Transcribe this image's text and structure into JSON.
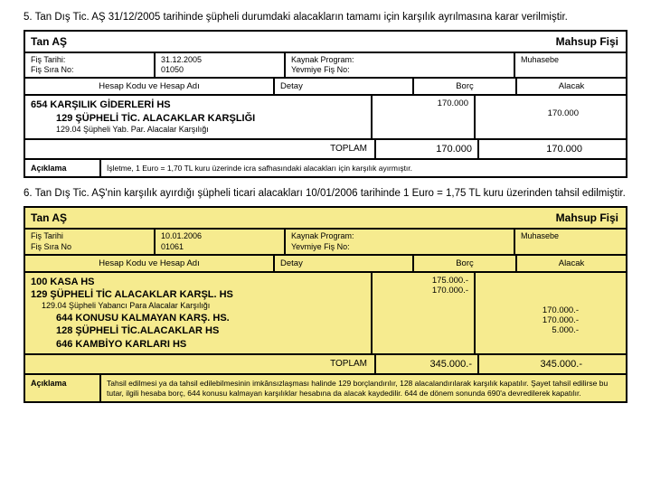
{
  "para5": "5. Tan Dış Tic. AŞ 31/12/2005 tarihinde şüpheli durumdaki alacakların tamamı için karşılık ayrılmasına karar verilmiştir.",
  "para6": "6. Tan Dış Tic. AŞ'nin karşılık ayırdığı şüpheli ticari alacakları 10/01/2006 tarihinde  1 Euro = 1,75  TL kuru üzerinden tahsil edilmiştir.",
  "labels": {
    "company": "Tan  AŞ",
    "vtitle": "Mahsup Fişi",
    "fisTarihi": "Fiş Tarihi:",
    "fisTarihiB": "Fiş Tarihi",
    "fisSira": "Fiş Sıra No:",
    "fisSiraB": "Fiş Sıra No",
    "kaynak": "Kaynak Program:",
    "yevmiye": "Yevmiye Fiş No:",
    "muhasebe": "Muhasebe",
    "hesap": "Hesap Kodu ve Hesap Adı",
    "detay": "Detay",
    "borc": "Borç",
    "alacak": "Alacak",
    "toplam": "TOPLAM",
    "aciklama": "Açıklama"
  },
  "v1": {
    "date": "31.12.2005",
    "no": "01050",
    "debitLines": "170.000",
    "creditLines": "170.000",
    "totDebit": "170.000",
    "totCredit": "170.000",
    "acc1": "654 KARŞILIK GİDERLERİ HS",
    "acc2": "129 ŞÜPHELİ TİC. ALACAKLAR KARŞLIĞI",
    "sub1": "129.04 Şüpheli Yab. Par. Alacalar Karşılığı",
    "expl": "İşletme, 1 Euro = 1,70  TL kuru üzerinde icra safhasındaki alacakları için karşılık ayırmıştır."
  },
  "v2": {
    "date": "10.01.2006",
    "no": "01061",
    "acc1": "100 KASA HS",
    "acc2": "129 ŞÜPHELİ TİC ALACAKLAR KARŞL. HS",
    "sub1": "129.04 Şüpheli Yabancı  Para Alacalar Karşılığı",
    "acc3": "644 KONUSU KALMAYAN KARŞ. HS.",
    "acc4": "128 ŞÜPHELİ TİC.ALACAKLAR HS",
    "acc5": "646 KAMBİYO KARLARI HS",
    "debitLines": "175.000.-\n170.000.-",
    "creditLines": "170.000.-\n170.000.-\n5.000.-",
    "totDebit": "345.000.-",
    "totCredit": "345.000.-",
    "expl": "Tahsil edilmesi ya da tahsil edilebilmesinin imkânsızlaşması halinde 129 borçlandırılır, 128 alacalandırılarak karşılık kapatılır. Şayet tahsil edilirse bu tutar, ilgili hesaba borç, 644 konusu kalmayan karşılıklar hesabına da alacak kaydedilir. 644 de dönem sonunda 690'a devredilerek kapatılır."
  }
}
